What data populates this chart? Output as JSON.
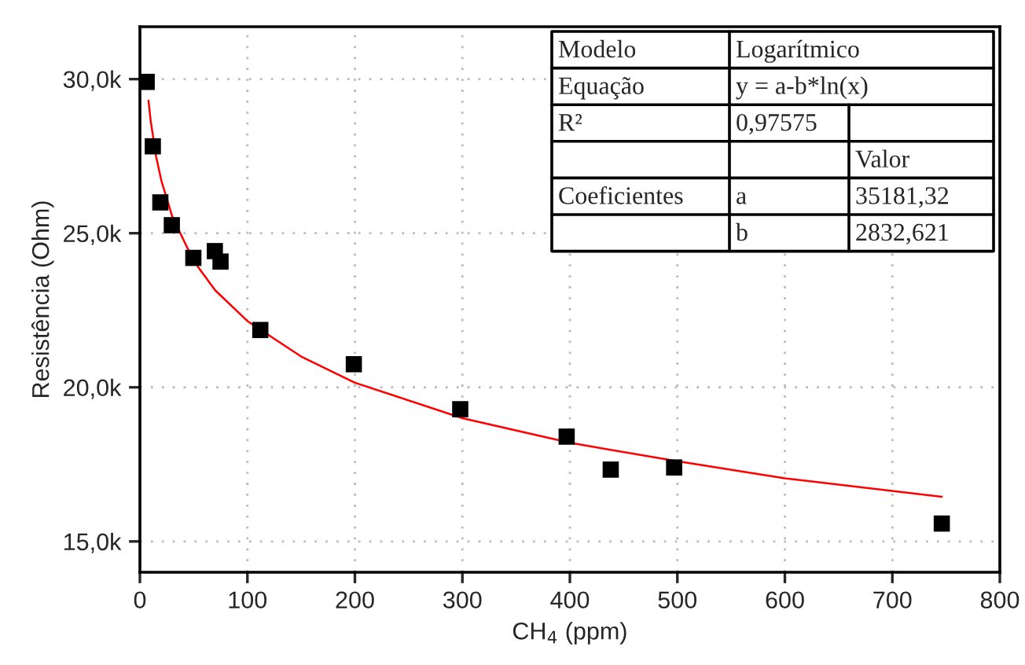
{
  "chart_data": {
    "type": "scatter",
    "xlabel": "CH$_{4}$ (ppm)",
    "ylabel": "Resistência (Ohm)",
    "xlim": [
      0,
      800
    ],
    "xticks": [
      0,
      100,
      200,
      300,
      400,
      500,
      600,
      700,
      800
    ],
    "ylim": [
      14000,
      31700
    ],
    "yticks": [
      {
        "value": 15000,
        "label": "15,0k"
      },
      {
        "value": 20000,
        "label": "20,0k"
      },
      {
        "value": 25000,
        "label": "25,0k"
      },
      {
        "value": 30000,
        "label": "30,0k"
      }
    ],
    "grid": true,
    "marker": "square",
    "series": [
      {
        "color": "#000000",
        "x": [
          6.3,
          12,
          19,
          29.7,
          49.7,
          69.7,
          75,
          112,
          199,
          298,
          397,
          438,
          497,
          746
        ],
        "values": [
          29910,
          27820,
          26000,
          25260,
          24200,
          24420,
          24080,
          21860,
          20750,
          19290,
          18400,
          17330,
          17400,
          15580
        ]
      },
      {
        "type": "line",
        "color": "#ff0000",
        "marker": "none",
        "x": [
          8,
          10,
          15,
          20,
          30,
          50,
          70,
          100,
          150,
          200,
          300,
          400,
          500,
          600,
          746
        ],
        "values": [
          29300,
          28650,
          27500,
          26700,
          25550,
          24100,
          23150,
          22150,
          21000,
          20150,
          19000,
          18200,
          17600,
          17050,
          16450
        ]
      }
    ],
    "annotations": [
      "Modelo",
      "Logarítmico",
      "Equação",
      "y = a-b*ln(x)",
      "R²",
      "0,97575",
      "Valor",
      "Coeficientes",
      "a",
      "35181,32",
      "b",
      "2832,621"
    ]
  }
}
